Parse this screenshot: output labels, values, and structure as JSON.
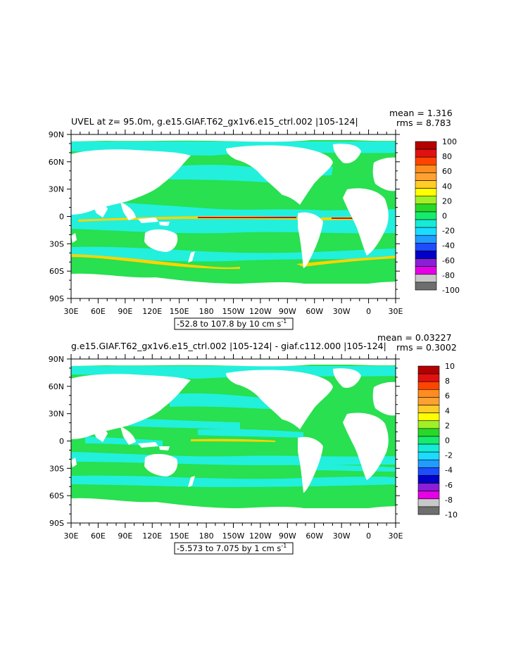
{
  "panels": [
    {
      "title": "UVEL at z=  95.0m, g.e15.GIAF.T62_gx1v6.e15_ctrl.002 |105-124|",
      "stat_mean": "mean = 1.316",
      "stat_rms": "rms = 8.783",
      "range_text": "-52.8 to 107.8 by 10 cm s",
      "range_exp": "-1",
      "lat_labels": [
        "90N",
        "60N",
        "30N",
        "0",
        "30S",
        "60S",
        "90S"
      ],
      "lon_labels": [
        "30E",
        "60E",
        "90E",
        "120E",
        "150E",
        "180",
        "150W",
        "120W",
        "90W",
        "60W",
        "30W",
        "0",
        "30E"
      ],
      "colorbar_labels": [
        "100",
        "80",
        "60",
        "40",
        "20",
        "0",
        "-20",
        "-40",
        "-60",
        "-80",
        "-100"
      ],
      "colorbar_colors": [
        "#b40000",
        "#e21111",
        "#ff4400",
        "#ff8c1e",
        "#ffa032",
        "#ffcc28",
        "#ffff00",
        "#a0f028",
        "#28d828",
        "#17eb6d",
        "#15ebd7",
        "#1bdcff",
        "#209cff",
        "#1e4cff",
        "#0000c8",
        "#8c1ed7",
        "#e600e6",
        "#c8c8c8",
        "#6e6e6e"
      ]
    },
    {
      "title": "g.e15.GIAF.T62_gx1v6.e15_ctrl.002 |105-124| - giaf.c112.000 |105-124|",
      "stat_mean": "mean = 0.03227",
      "stat_rms": "rms = 0.3002",
      "range_text": "-5.573 to 7.075 by 1 cm s",
      "range_exp": "-1",
      "lat_labels": [
        "90N",
        "60N",
        "30N",
        "0",
        "30S",
        "60S",
        "90S"
      ],
      "lon_labels": [
        "30E",
        "60E",
        "90E",
        "120E",
        "150E",
        "180",
        "150W",
        "120W",
        "90W",
        "60W",
        "30W",
        "0",
        "30E"
      ],
      "colorbar_labels": [
        "10",
        "8",
        "6",
        "4",
        "2",
        "0",
        "-2",
        "-4",
        "-6",
        "-8",
        "-10"
      ],
      "colorbar_colors": [
        "#b40000",
        "#e21111",
        "#ff4400",
        "#ff8c1e",
        "#ffa032",
        "#ffcc28",
        "#ffff00",
        "#a0f028",
        "#28d828",
        "#17eb6d",
        "#15ebd7",
        "#1bdcff",
        "#209cff",
        "#1e4cff",
        "#0000c8",
        "#8c1ed7",
        "#e600e6",
        "#c8c8c8",
        "#6e6e6e"
      ]
    }
  ],
  "colors": {
    "ocean_main": "#28e050",
    "ocean_alt": "#22f0dc",
    "land": "#ffffff",
    "jet_warm": "#ffd400",
    "jet_hot": "#d41010"
  }
}
